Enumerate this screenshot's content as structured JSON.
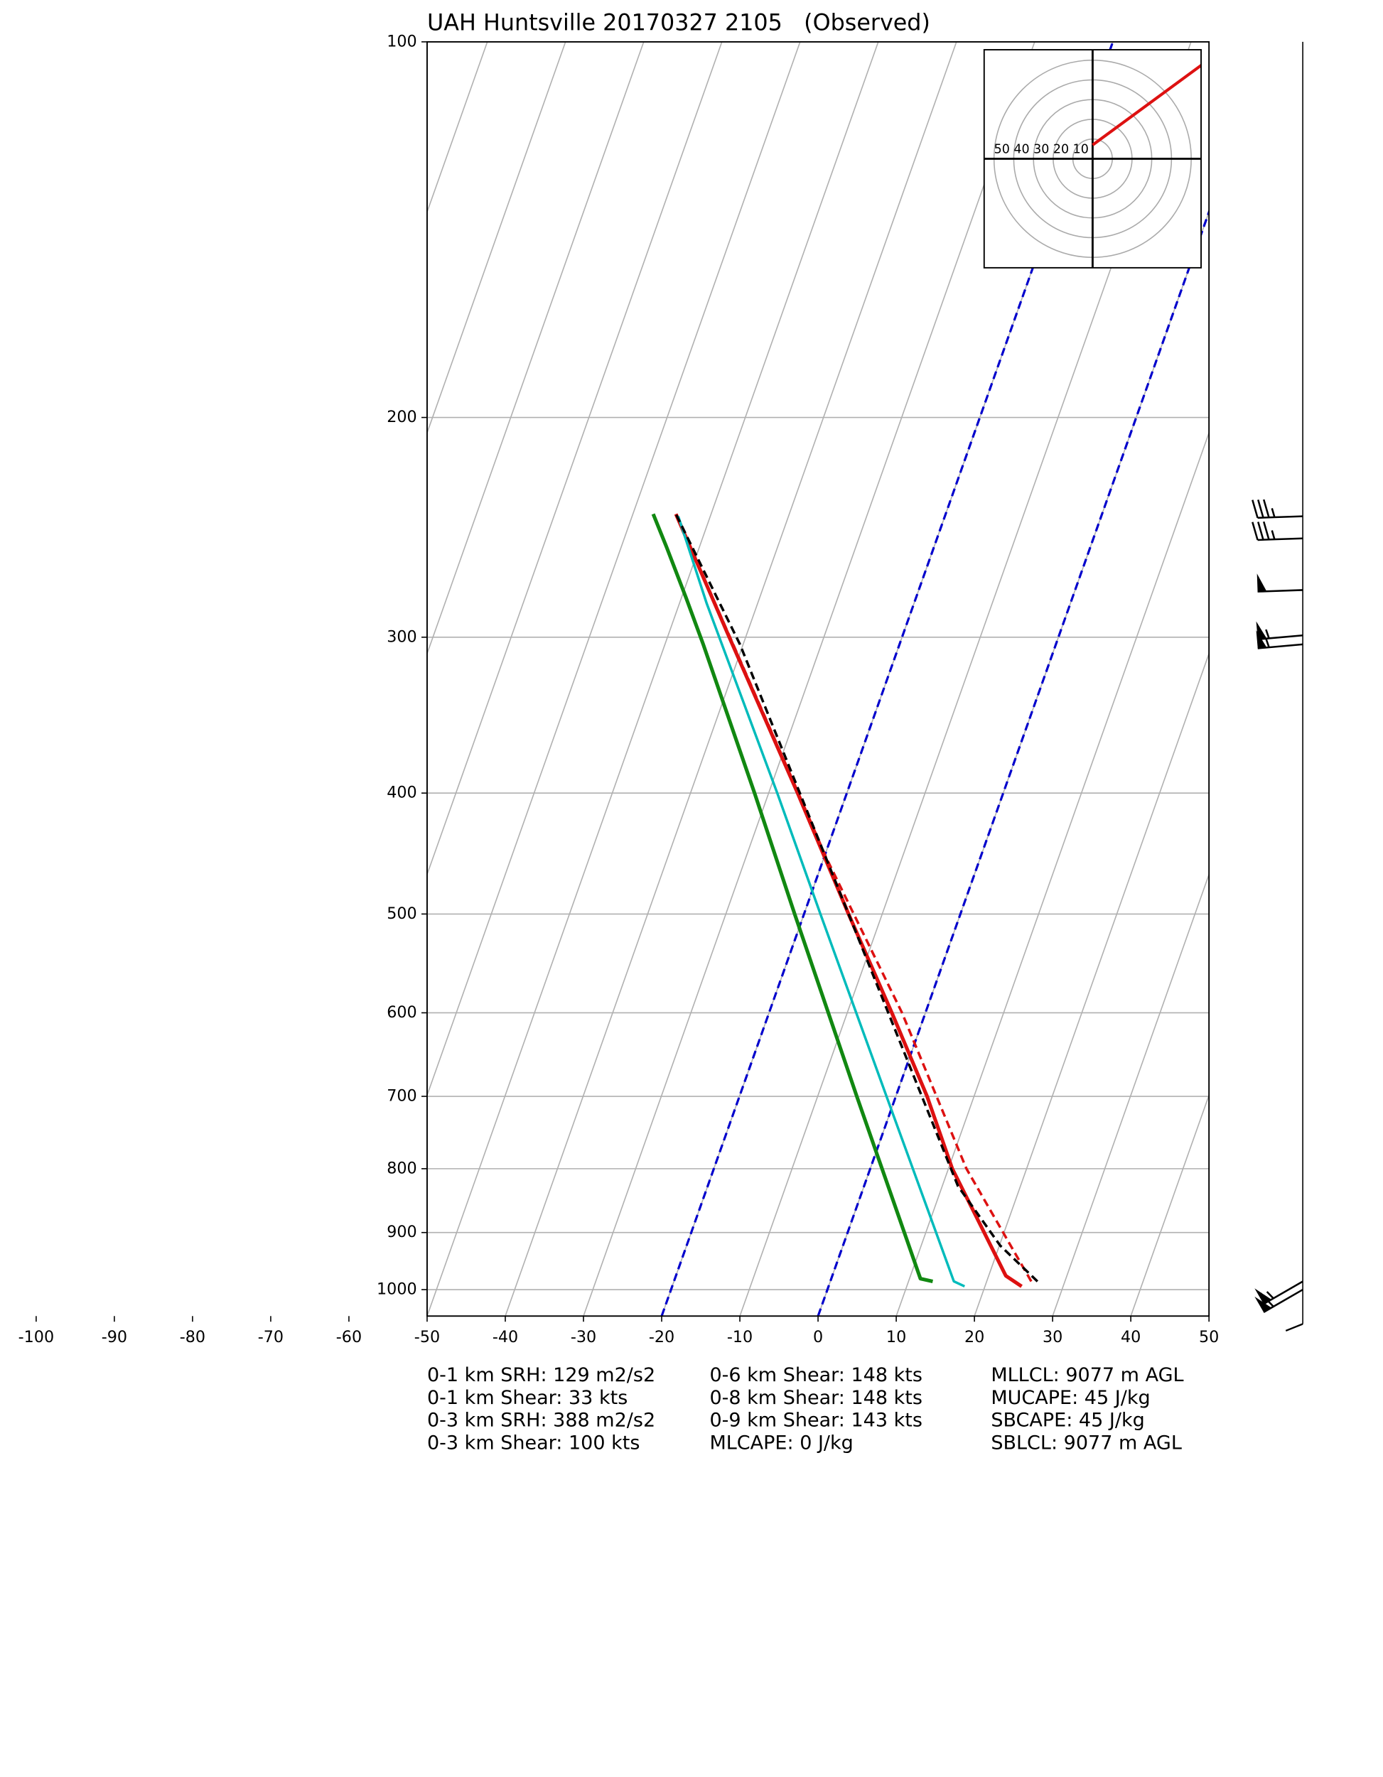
{
  "chart_data": {
    "type": "skewt",
    "title": "UAH Huntsville 20170327 2105   (Observed)",
    "xlim": [
      -50,
      50
    ],
    "xticks": [
      -100,
      -90,
      -80,
      -70,
      -60,
      -50,
      -40,
      -30,
      -20,
      -10,
      0,
      10,
      20,
      30,
      40,
      50
    ],
    "ylim": [
      1050,
      100
    ],
    "yticks": [
      100,
      200,
      300,
      400,
      500,
      600,
      700,
      800,
      900,
      1000
    ],
    "log_scale": "y",
    "grid": true,
    "grid_color": "#b0b0b0",
    "special_isotherms": [
      -20,
      0
    ],
    "special_isotherm_color": "#0000cc",
    "profiles": [
      {
        "color": "#dd1111",
        "dash": false,
        "width": 3.2,
        "pressure": [
          994,
          975,
          800,
          700,
          600,
          500,
          400,
          300,
          239
        ],
        "temperature": [
          24.7,
          22.2,
          10.5,
          4.0,
          -4.3,
          -14.3,
          -26.3,
          -42.1,
          -54.5
        ]
      },
      {
        "color": "#dd1111",
        "dash": true,
        "width": 2.2,
        "pressure": [
          985,
          800,
          600,
          450,
          400,
          300,
          239
        ],
        "temperature": [
          25.7,
          12.3,
          -3.0,
          -19.8,
          -26.2,
          -42.0,
          -54.5
        ]
      },
      {
        "color": "#00bbbb",
        "dash": false,
        "width": 2.2,
        "pressure": [
          994,
          985,
          700,
          500,
          400,
          282,
          240
        ],
        "temperature": [
          17.4,
          15.8,
          -1.2,
          -17.9,
          -28.9,
          -46.5,
          -54.1
        ]
      },
      {
        "color": "#118811",
        "dash": false,
        "width": 3.2,
        "pressure": [
          985,
          980,
          700,
          500,
          400,
          304,
          279,
          254,
          239
        ],
        "temperature": [
          13.1,
          11.4,
          -5.0,
          -21.2,
          -31.8,
          -45.1,
          -49.4,
          -54.2,
          -57.4
        ]
      },
      {
        "color": "#000000",
        "dash": true,
        "width": 2.2,
        "pressure": [
          985,
          922,
          826,
          500,
          304,
          239
        ],
        "temperature": [
          26.5,
          20.1,
          12.0,
          -14.3,
          -40.4,
          -54.5
        ]
      }
    ],
    "wind_barbs": {
      "pressure": [
        240,
        250,
        275,
        299,
        304,
        985,
        1000
      ],
      "speed": [
        35,
        35,
        50,
        55,
        55,
        55,
        60
      ],
      "direction": [
        268,
        268,
        268,
        265,
        265,
        240,
        240
      ]
    },
    "hodograph": {
      "lim": 55,
      "rings": [
        10,
        20,
        30,
        40,
        50
      ],
      "u": [
        0,
        60
      ],
      "v": [
        7,
        51
      ],
      "color": "#dd1111"
    },
    "stats": [
      [
        "0-1 km SRH: 129 m2/s2",
        "0-1 km Shear: 33 kts",
        "0-3 km SRH: 388 m2/s2",
        "0-3 km Shear: 100 kts"
      ],
      [
        "0-6 km Shear: 148 kts",
        "0-8 km Shear: 148 kts",
        "0-9 km Shear: 143 kts",
        "MLCAPE: 0 J/kg"
      ],
      [
        "MLLCL: 9077 m AGL",
        "MUCAPE: 45 J/kg",
        "SBCAPE: 45 J/kg",
        "SBLCL: 9077 m AGL"
      ]
    ]
  }
}
